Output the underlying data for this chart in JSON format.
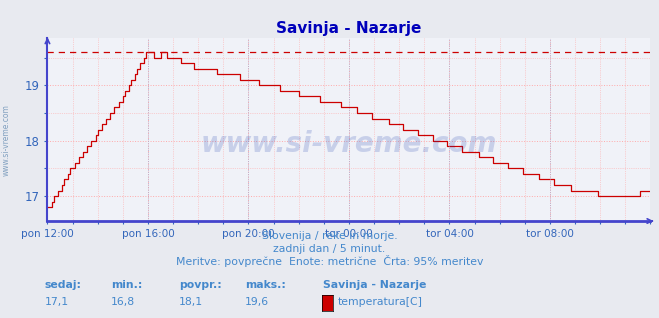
{
  "title": "Savinja - Nazarje",
  "title_color": "#0000bb",
  "fig_bg": "#e8eaf0",
  "plot_bg": "#f0f2f8",
  "line_color": "#cc0000",
  "grid_color": "#ffaaaa",
  "grid_vline_color": "#aaaacc",
  "axis_color": "#4444cc",
  "text_color": "#4488cc",
  "label_color": "#3366bb",
  "max_val": 19.6,
  "ylim_min": 16.55,
  "ylim_max": 19.85,
  "yticks": [
    17,
    18,
    19
  ],
  "xtick_labels": [
    "pon 12:00",
    "pon 16:00",
    "pon 20:00",
    "tor 00:00",
    "tor 04:00",
    "tor 08:00"
  ],
  "xtick_positions": [
    0,
    48,
    96,
    144,
    192,
    240
  ],
  "subtitle1": "Slovenija / reke in morje.",
  "subtitle2": "zadnji dan / 5 minut.",
  "subtitle3": "Meritve: povprečne  Enote: metrične  Črta: 95% meritev",
  "leg_labels": [
    "sedaj:",
    "min.:",
    "povpr.:",
    "maks.:"
  ],
  "leg_vals": [
    "17,1",
    "16,8",
    "18,1",
    "19,6"
  ],
  "leg_station": "Savinja - Nazarje",
  "leg_series": "temperatura[C]",
  "series_color": "#cc0000",
  "watermark": "www.si-vreme.com",
  "side_text": "www.si-vreme.com"
}
